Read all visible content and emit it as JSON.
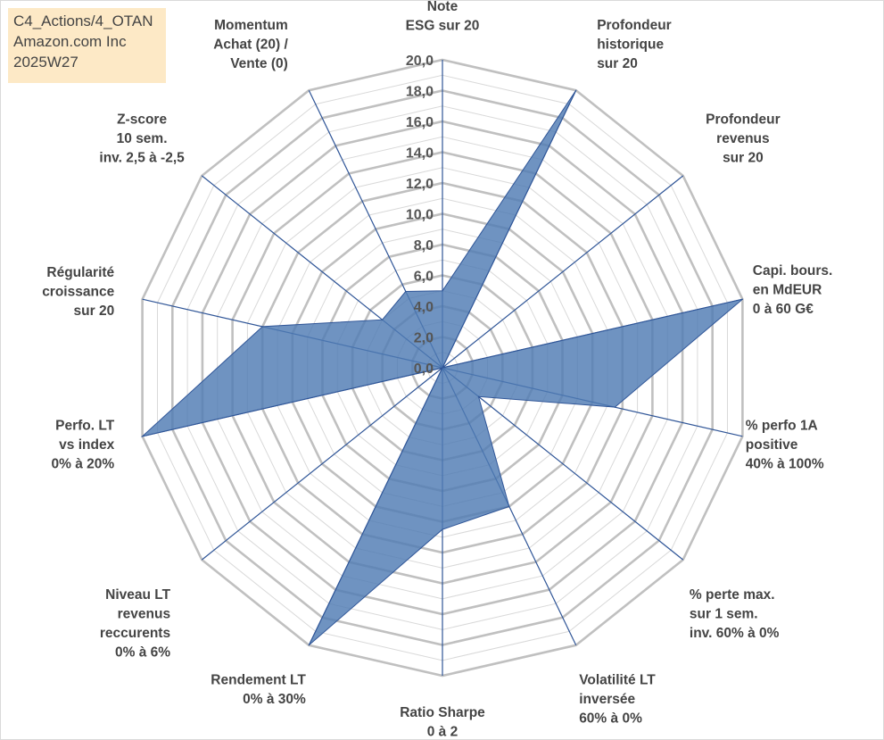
{
  "info": {
    "line1": "C4_Actions/4_OTAN",
    "line2": "Amazon.com Inc",
    "line3": "2025W27"
  },
  "colors": {
    "fill": "#4f7bb3",
    "spoke": "#2f5597",
    "grid_major": "#c0c0c0",
    "grid_minor": "#d9d9d9"
  },
  "chart_data": {
    "type": "radar",
    "range": [
      0,
      20
    ],
    "major_step": 2,
    "minor_step": 1,
    "tick_labels": [
      "0,0",
      "2,0",
      "4,0",
      "6,0",
      "8,0",
      "10,0",
      "12,0",
      "14,0",
      "16,0",
      "18,0",
      "20,0"
    ],
    "axes": [
      {
        "label": [
          "Note",
          "ESG sur 20"
        ],
        "value": 5.0
      },
      {
        "label": [
          "Profondeur",
          "historique",
          "sur 20"
        ],
        "value": 20.0
      },
      {
        "label": [
          "Profondeur",
          "revenus",
          "sur 20"
        ],
        "value": 0.0
      },
      {
        "label": [
          "Capi. bours.",
          "en MdEUR",
          "0 à 60 G€"
        ],
        "value": 20.0
      },
      {
        "label": [
          "% perfo 1A",
          "positive",
          "40% à 100%"
        ],
        "value": 11.5
      },
      {
        "label": [
          "% perte max.",
          "sur 1 sem.",
          "inv. 60% à 0%"
        ],
        "value": 3.0
      },
      {
        "label": [
          "Volatilité LT",
          "inversée",
          "60% à 0%"
        ],
        "value": 10.0
      },
      {
        "label": [
          "Ratio Sharpe",
          "0 à 2"
        ],
        "value": 10.5
      },
      {
        "label": [
          "Rendement LT",
          "0% à 30%"
        ],
        "value": 20.0
      },
      {
        "label": [
          "Niveau LT",
          "revenus",
          "reccurents",
          "0% à 6%"
        ],
        "value": 0.0
      },
      {
        "label": [
          "Perfo. LT",
          "vs index",
          "0% à 20%"
        ],
        "value": 20.0
      },
      {
        "label": [
          "Régularité",
          "croissance",
          "sur 20"
        ],
        "value": 12.0
      },
      {
        "label": [
          "Z-score",
          "10 sem.",
          "inv. 2,5 à -2,5"
        ],
        "value": 5.0
      },
      {
        "label": [
          "Momentum",
          "Achat (20) /",
          "Vente (0)"
        ],
        "value": 5.5
      }
    ]
  }
}
